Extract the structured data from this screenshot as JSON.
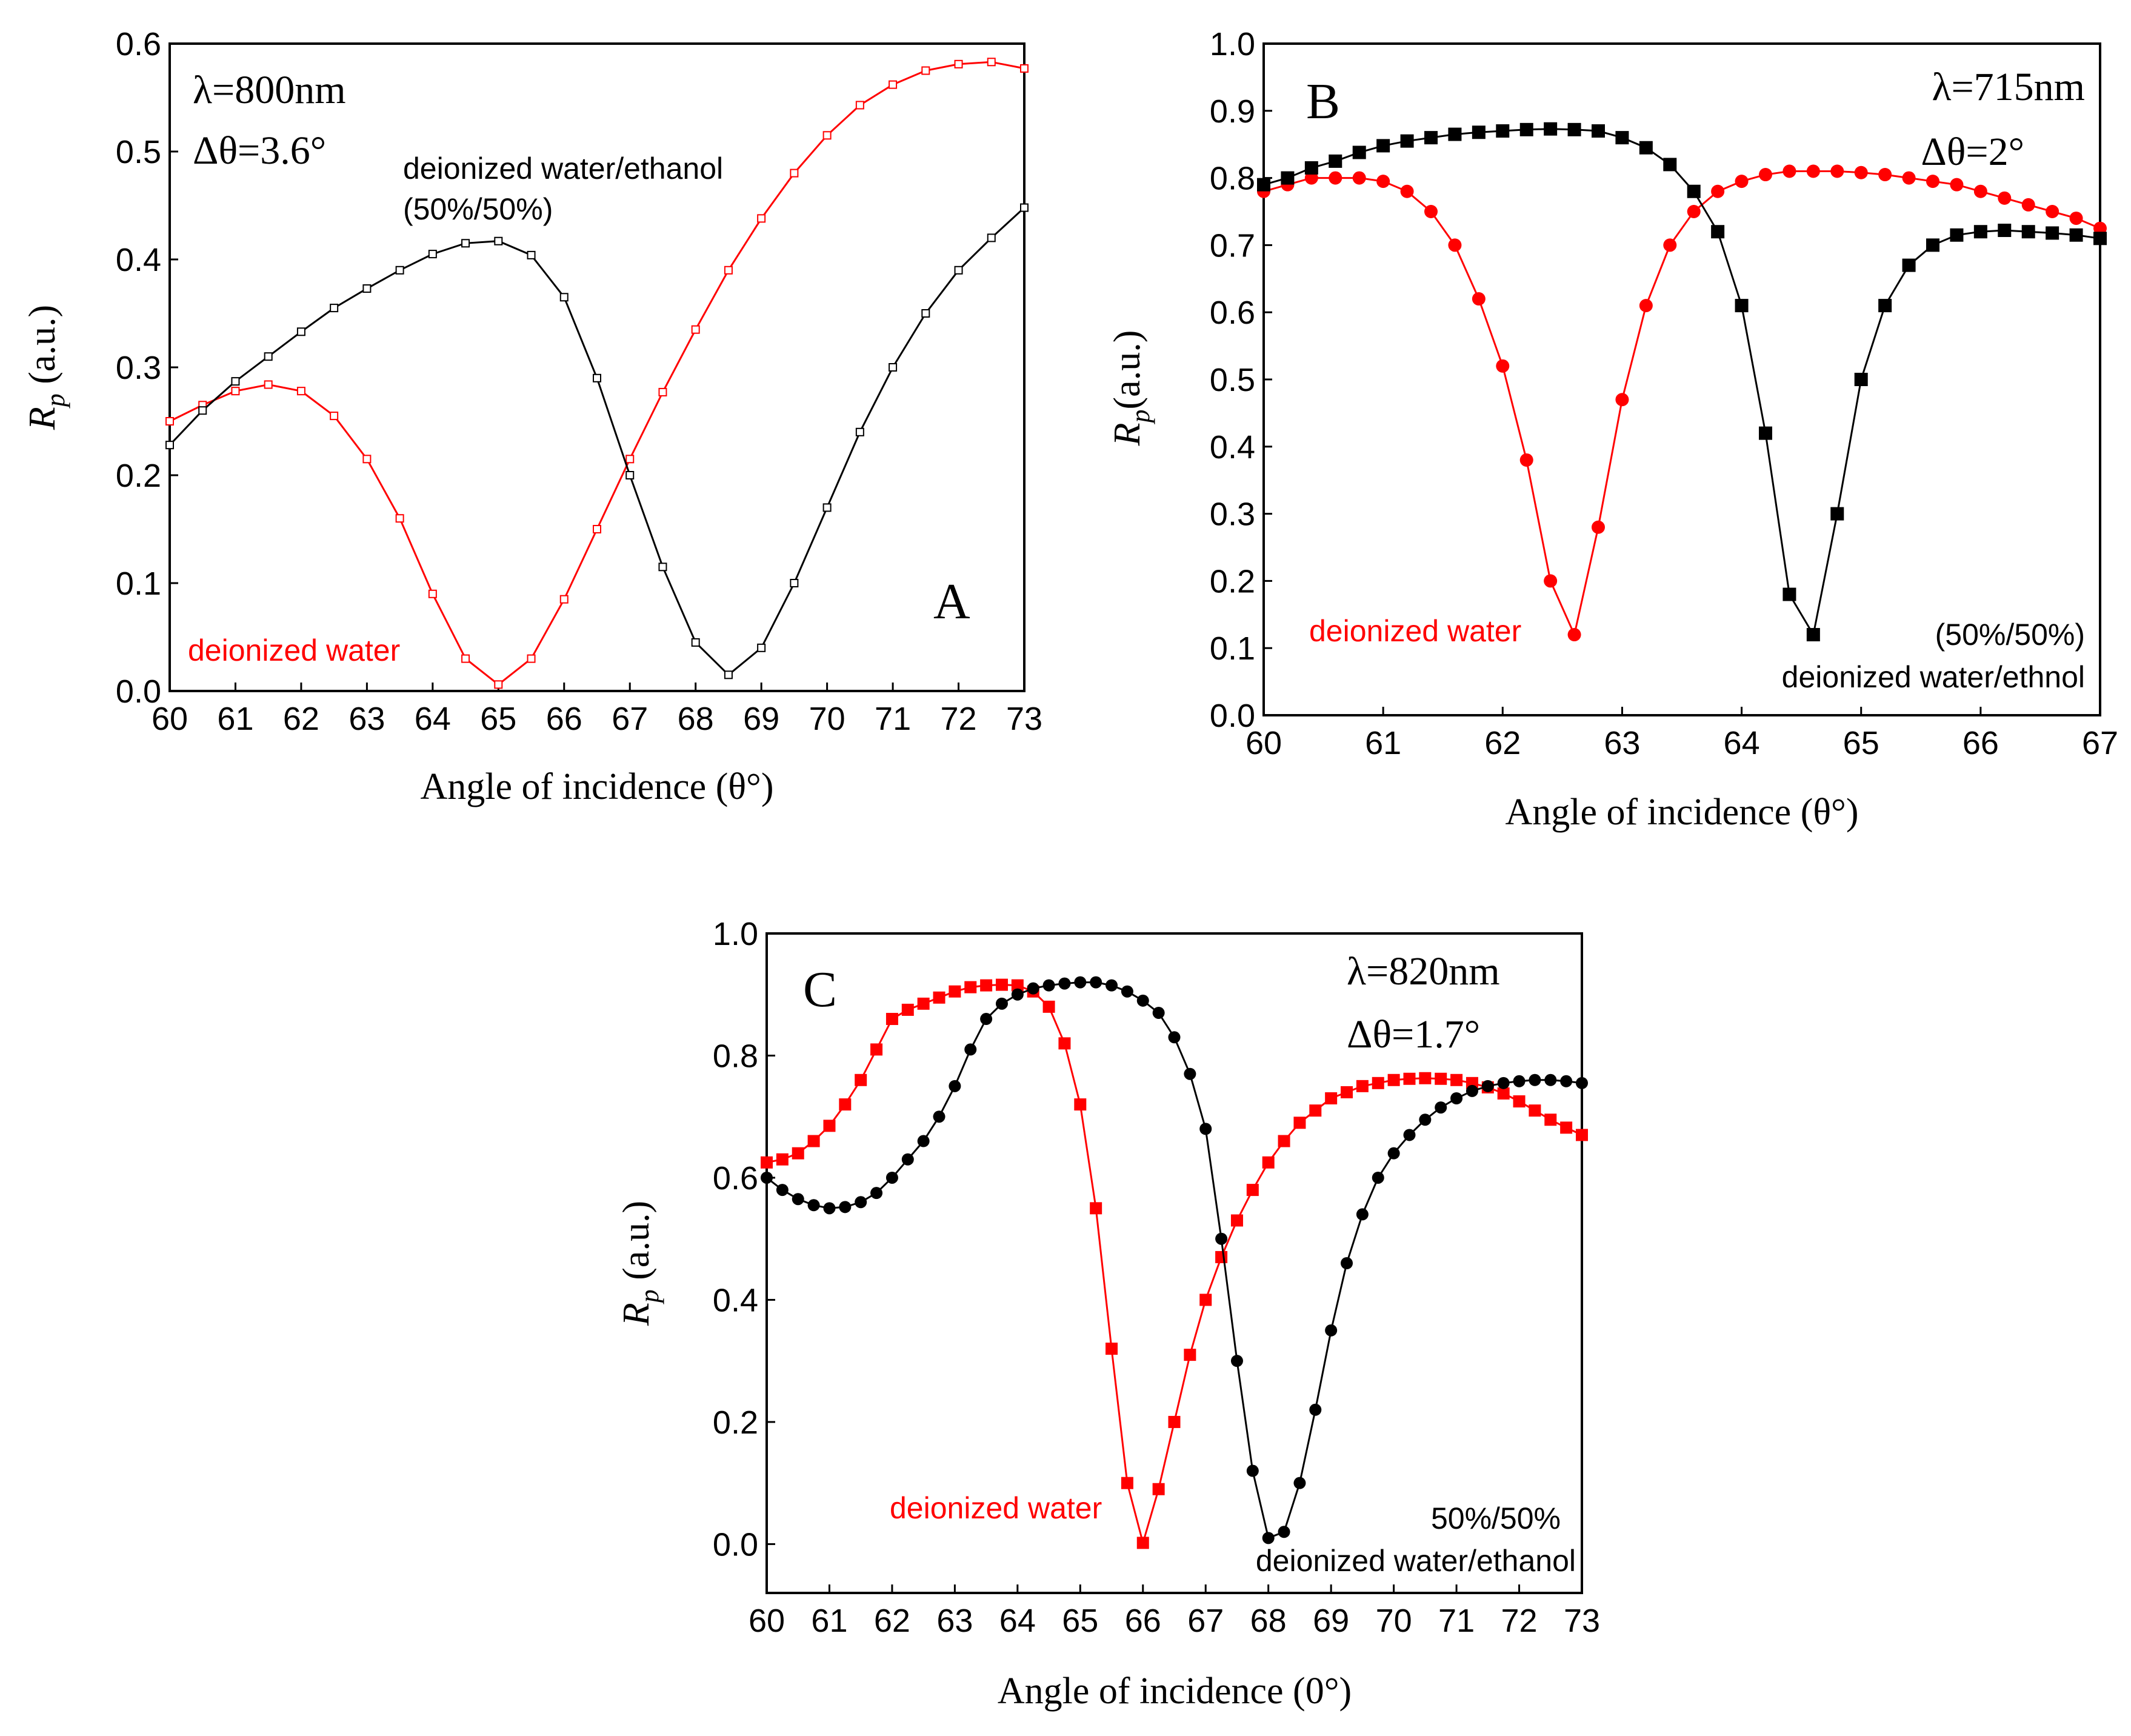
{
  "colors": {
    "water": "#ff0000",
    "mix": "#000000",
    "axis": "#000000"
  },
  "chart_data": [
    {
      "type": "line",
      "panel_letter": "A",
      "title": "",
      "xlabel": "Angle of incidence (θ°)",
      "ylabel_main": "R",
      "ylabel_sub": "p",
      "ylabel_unit": " (a.u.)",
      "xlim": [
        60,
        73
      ],
      "ylim": [
        0,
        0.6
      ],
      "xticks": [
        "60",
        "61",
        "62",
        "63",
        "64",
        "65",
        "66",
        "67",
        "68",
        "69",
        "70",
        "71",
        "72",
        "73"
      ],
      "yticks": [
        "0.0",
        "0.1",
        "0.2",
        "0.3",
        "0.4",
        "0.5",
        "0.6"
      ],
      "params": [
        "λ=800nm",
        "Δθ=3.6°"
      ],
      "annotations": [
        {
          "text": "deionized water/ethanol",
          "color": "#000000"
        },
        {
          "text": "(50%/50%)",
          "color": "#000000"
        },
        {
          "text": "deionized water",
          "color": "#ff0000"
        }
      ],
      "series": [
        {
          "name": "deionized water",
          "color": "#ff0000",
          "marker": "hollow-square",
          "x": [
            60,
            60.5,
            61,
            61.5,
            62,
            62.5,
            63,
            63.5,
            64,
            64.5,
            65,
            65.5,
            66,
            66.5,
            67,
            67.5,
            68,
            68.5,
            69,
            69.5,
            70,
            70.5,
            71,
            71.5,
            72,
            72.5,
            73
          ],
          "y": [
            0.25,
            0.265,
            0.278,
            0.284,
            0.278,
            0.255,
            0.215,
            0.16,
            0.09,
            0.03,
            0.006,
            0.03,
            0.085,
            0.15,
            0.215,
            0.277,
            0.335,
            0.39,
            0.438,
            0.48,
            0.515,
            0.543,
            0.562,
            0.575,
            0.581,
            0.583,
            0.577
          ]
        },
        {
          "name": "deionized water/ethanol (50%/50%)",
          "color": "#000000",
          "marker": "hollow-square",
          "x": [
            60,
            60.5,
            61,
            61.5,
            62,
            62.5,
            63,
            63.5,
            64,
            64.5,
            65,
            65.5,
            66,
            66.5,
            67,
            67.5,
            68,
            68.5,
            69,
            69.5,
            70,
            70.5,
            71,
            71.5,
            72,
            72.5,
            73
          ],
          "y": [
            0.228,
            0.26,
            0.287,
            0.31,
            0.333,
            0.355,
            0.373,
            0.39,
            0.405,
            0.415,
            0.417,
            0.404,
            0.365,
            0.29,
            0.2,
            0.115,
            0.045,
            0.015,
            0.04,
            0.1,
            0.17,
            0.24,
            0.3,
            0.35,
            0.39,
            0.42,
            0.448
          ]
        }
      ]
    },
    {
      "type": "line",
      "panel_letter": "B",
      "title": "",
      "xlabel": "Angle of incidence (θ°)",
      "ylabel_main": "R",
      "ylabel_sub": "p",
      "ylabel_unit": "(a.u.)",
      "xlim": [
        60,
        67
      ],
      "ylim": [
        0,
        1.0
      ],
      "xticks": [
        "60",
        "61",
        "62",
        "63",
        "64",
        "65",
        "66",
        "67"
      ],
      "yticks": [
        "0.0",
        "0.1",
        "0.2",
        "0.3",
        "0.4",
        "0.5",
        "0.6",
        "0.7",
        "0.8",
        "0.9",
        "1.0"
      ],
      "params": [
        "λ=715nm",
        "Δθ=2°"
      ],
      "annotations": [
        {
          "text": "deionized water",
          "color": "#ff0000"
        },
        {
          "text": "(50%/50%)",
          "color": "#000000"
        },
        {
          "text": "deionized water/ethnol",
          "color": "#000000"
        }
      ],
      "series": [
        {
          "name": "deionized water",
          "color": "#ff0000",
          "marker": "circle",
          "x": [
            60,
            60.2,
            60.4,
            60.6,
            60.8,
            61,
            61.2,
            61.4,
            61.6,
            61.8,
            62,
            62.2,
            62.4,
            62.6,
            62.8,
            63,
            63.2,
            63.4,
            63.6,
            63.8,
            64,
            64.2,
            64.4,
            64.6,
            64.8,
            65,
            65.2,
            65.4,
            65.6,
            65.8,
            66,
            66.2,
            66.4,
            66.6,
            66.8,
            67
          ],
          "y": [
            0.78,
            0.79,
            0.8,
            0.8,
            0.8,
            0.795,
            0.78,
            0.75,
            0.7,
            0.62,
            0.52,
            0.38,
            0.2,
            0.12,
            0.28,
            0.47,
            0.61,
            0.7,
            0.75,
            0.78,
            0.795,
            0.805,
            0.81,
            0.81,
            0.81,
            0.808,
            0.805,
            0.8,
            0.795,
            0.79,
            0.78,
            0.77,
            0.76,
            0.75,
            0.74,
            0.725
          ]
        },
        {
          "name": "deionized water/ethnol (50%/50%)",
          "color": "#000000",
          "marker": "square",
          "x": [
            60,
            60.2,
            60.4,
            60.6,
            60.8,
            61,
            61.2,
            61.4,
            61.6,
            61.8,
            62,
            62.2,
            62.4,
            62.6,
            62.8,
            63,
            63.2,
            63.4,
            63.6,
            63.8,
            64,
            64.2,
            64.4,
            64.6,
            64.8,
            65,
            65.2,
            65.4,
            65.6,
            65.8,
            66,
            66.2,
            66.4,
            66.6,
            66.8,
            67
          ],
          "y": [
            0.79,
            0.8,
            0.815,
            0.825,
            0.838,
            0.848,
            0.855,
            0.86,
            0.865,
            0.868,
            0.87,
            0.872,
            0.873,
            0.872,
            0.87,
            0.86,
            0.845,
            0.82,
            0.78,
            0.72,
            0.61,
            0.42,
            0.18,
            0.12,
            0.3,
            0.5,
            0.61,
            0.67,
            0.7,
            0.715,
            0.72,
            0.722,
            0.72,
            0.718,
            0.715,
            0.71
          ]
        }
      ]
    },
    {
      "type": "line",
      "panel_letter": "C",
      "title": "",
      "xlabel": "Angle of incidence (0°)",
      "ylabel_main": "R",
      "ylabel_sub": "p",
      "ylabel_unit": " (a.u.)",
      "xlim": [
        60,
        73
      ],
      "ylim": [
        -0.08,
        1.0
      ],
      "xticks": [
        "60",
        "61",
        "62",
        "63",
        "64",
        "65",
        "66",
        "67",
        "68",
        "69",
        "70",
        "71",
        "72",
        "73"
      ],
      "yticks": [
        "0.0",
        "0.2",
        "0.4",
        "0.6",
        "0.8",
        "1.0"
      ],
      "params": [
        "λ=820nm",
        "Δθ=1.7°"
      ],
      "annotations": [
        {
          "text": "deionized water",
          "color": "#ff0000"
        },
        {
          "text": "50%/50%",
          "color": "#000000"
        },
        {
          "text": "deionized water/ethanol",
          "color": "#000000"
        }
      ],
      "series": [
        {
          "name": "deionized water",
          "color": "#ff0000",
          "marker": "square",
          "x": [
            60,
            60.25,
            60.5,
            60.75,
            61,
            61.25,
            61.5,
            61.75,
            62,
            62.25,
            62.5,
            62.75,
            63,
            63.25,
            63.5,
            63.75,
            64,
            64.25,
            64.5,
            64.75,
            65,
            65.25,
            65.5,
            65.75,
            66,
            66.25,
            66.5,
            66.75,
            67,
            67.25,
            67.5,
            67.75,
            68,
            68.25,
            68.5,
            68.75,
            69,
            69.25,
            69.5,
            69.75,
            70,
            70.25,
            70.5,
            70.75,
            71,
            71.25,
            71.5,
            71.75,
            72,
            72.25,
            72.5,
            72.75,
            73
          ],
          "y": [
            0.625,
            0.63,
            0.64,
            0.66,
            0.685,
            0.72,
            0.76,
            0.81,
            0.86,
            0.875,
            0.885,
            0.895,
            0.905,
            0.912,
            0.915,
            0.916,
            0.915,
            0.905,
            0.88,
            0.82,
            0.72,
            0.55,
            0.32,
            0.1,
            0.002,
            0.09,
            0.2,
            0.31,
            0.4,
            0.47,
            0.53,
            0.58,
            0.625,
            0.66,
            0.69,
            0.71,
            0.73,
            0.74,
            0.75,
            0.755,
            0.76,
            0.762,
            0.763,
            0.762,
            0.76,
            0.755,
            0.748,
            0.738,
            0.725,
            0.71,
            0.695,
            0.682,
            0.67
          ]
        },
        {
          "name": "deionized water/ethanol (50%/50%)",
          "color": "#000000",
          "marker": "circle",
          "x": [
            60,
            60.25,
            60.5,
            60.75,
            61,
            61.25,
            61.5,
            61.75,
            62,
            62.25,
            62.5,
            62.75,
            63,
            63.25,
            63.5,
            63.75,
            64,
            64.25,
            64.5,
            64.75,
            65,
            65.25,
            65.5,
            65.75,
            66,
            66.25,
            66.5,
            66.75,
            67,
            67.25,
            67.5,
            67.75,
            68,
            68.25,
            68.5,
            68.75,
            69,
            69.25,
            69.5,
            69.75,
            70,
            70.25,
            70.5,
            70.75,
            71,
            71.25,
            71.5,
            71.75,
            72,
            72.25,
            72.5,
            72.75,
            73
          ],
          "y": [
            0.6,
            0.58,
            0.565,
            0.555,
            0.55,
            0.552,
            0.56,
            0.575,
            0.6,
            0.63,
            0.66,
            0.7,
            0.75,
            0.81,
            0.86,
            0.885,
            0.9,
            0.91,
            0.915,
            0.918,
            0.92,
            0.92,
            0.915,
            0.905,
            0.89,
            0.87,
            0.83,
            0.77,
            0.68,
            0.5,
            0.3,
            0.12,
            0.01,
            0.02,
            0.1,
            0.22,
            0.35,
            0.46,
            0.54,
            0.6,
            0.64,
            0.67,
            0.695,
            0.715,
            0.73,
            0.742,
            0.75,
            0.755,
            0.758,
            0.76,
            0.76,
            0.758,
            0.755
          ]
        }
      ]
    }
  ]
}
